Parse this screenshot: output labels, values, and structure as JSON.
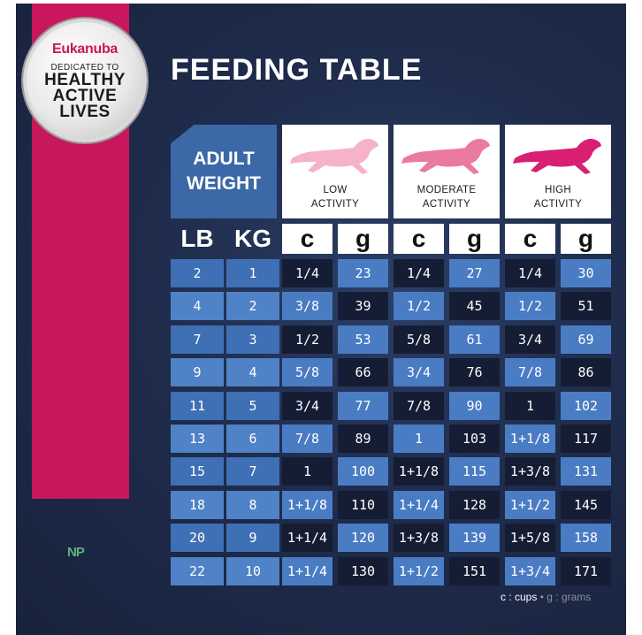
{
  "badge": {
    "brand": "Eukanuba",
    "tagline": "DEDICATED TO",
    "lines": [
      "HEALTHY",
      "ACTIVE",
      "LIVES"
    ]
  },
  "title": "FEEDING TABLE",
  "adult_weight": "ADULT\nWEIGHT",
  "activities": [
    {
      "label": "LOW\nACTIVITY",
      "dog_color": "#f6b3c7"
    },
    {
      "label": "MODERATE\nACTIVITY",
      "dog_color": "#ea7a9e"
    },
    {
      "label": "HIGH\nACTIVITY",
      "dog_color": "#d81f72"
    }
  ],
  "headers": [
    "LB",
    "KG",
    "c",
    "g",
    "c",
    "g",
    "c",
    "g"
  ],
  "rows": [
    [
      "2",
      "1",
      "1/4",
      "23",
      "1/4",
      "27",
      "1/4",
      "30"
    ],
    [
      "4",
      "2",
      "3/8",
      "39",
      "1/2",
      "45",
      "1/2",
      "51"
    ],
    [
      "7",
      "3",
      "1/2",
      "53",
      "5/8",
      "61",
      "3/4",
      "69"
    ],
    [
      "9",
      "4",
      "5/8",
      "66",
      "3/4",
      "76",
      "7/8",
      "86"
    ],
    [
      "11",
      "5",
      "3/4",
      "77",
      "7/8",
      "90",
      "1",
      "102"
    ],
    [
      "13",
      "6",
      "7/8",
      "89",
      "1",
      "103",
      "1+1/8",
      "117"
    ],
    [
      "15",
      "7",
      "1",
      "100",
      "1+1/8",
      "115",
      "1+3/8",
      "131"
    ],
    [
      "18",
      "8",
      "1+1/8",
      "110",
      "1+1/4",
      "128",
      "1+1/2",
      "145"
    ],
    [
      "20",
      "9",
      "1+1/4",
      "120",
      "1+3/8",
      "139",
      "1+5/8",
      "158"
    ],
    [
      "22",
      "10",
      "1+1/4",
      "130",
      "1+1/2",
      "151",
      "1+3/4",
      "171"
    ]
  ],
  "legend": {
    "cups": "c : cups",
    "dot": "•",
    "grams": "g : grams"
  },
  "watermark": "NP",
  "colors": {
    "brand_pink": "#c8175c",
    "navy": "#1f2c4c",
    "blue": "#3f6fb4"
  }
}
